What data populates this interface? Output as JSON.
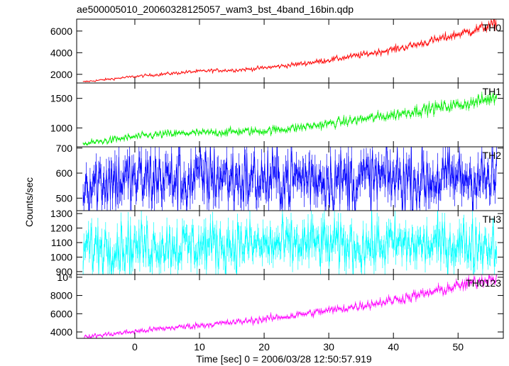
{
  "chart_data": {
    "type": "line",
    "title": "ae500005010_20060328125057_wam3_bst_4band_16bin.qdp",
    "xlabel": "Time [sec] 0 = 2006/03/28 12:50:57.919",
    "ylabel": "Counts/sec",
    "xlim": [
      -9,
      57
    ],
    "x_ticks": [
      0,
      10,
      20,
      30,
      40,
      50
    ],
    "panels": [
      {
        "name": "TH0",
        "color": "#ff0000",
        "ylim": [
          1200,
          7100
        ],
        "y_ticks": [
          2000,
          4000,
          6000
        ],
        "y_tick_labels": [
          "2000",
          "4000",
          "6000"
        ],
        "x": [
          -8,
          -4,
          0,
          4,
          8,
          12,
          16,
          20,
          24,
          28,
          32,
          36,
          40,
          44,
          48,
          52,
          56
        ],
        "values": [
          1300,
          1550,
          1800,
          2000,
          2200,
          2350,
          2400,
          2600,
          2850,
          3150,
          3500,
          3900,
          4300,
          4800,
          5400,
          6000,
          6700
        ]
      },
      {
        "name": "TH1",
        "color": "#00ee00",
        "ylim": [
          680,
          1760
        ],
        "y_ticks": [
          1000,
          1500
        ],
        "y_tick_labels": [
          "1000",
          "1500"
        ],
        "x": [
          -8,
          -4,
          0,
          4,
          8,
          12,
          16,
          20,
          24,
          28,
          32,
          36,
          40,
          44,
          48,
          52,
          56
        ],
        "values": [
          730,
          790,
          850,
          890,
          910,
          920,
          940,
          950,
          990,
          1040,
          1100,
          1160,
          1220,
          1300,
          1360,
          1420,
          1520
        ]
      },
      {
        "name": "TH2",
        "color": "#0000ff",
        "ylim": [
          450,
          705
        ],
        "y_ticks": [
          500,
          600,
          700
        ],
        "y_tick_labels": [
          "500",
          "600",
          "700"
        ],
        "x": [
          -8,
          -4,
          0,
          4,
          8,
          12,
          16,
          20,
          24,
          28,
          32,
          36,
          40,
          44,
          48,
          52,
          56
        ],
        "values": [
          560,
          575,
          570,
          580,
          565,
          590,
          575,
          570,
          580,
          585,
          570,
          575,
          580,
          570,
          575,
          585,
          560
        ]
      },
      {
        "name": "TH3",
        "color": "#00ffff",
        "ylim": [
          880,
          1320
        ],
        "y_ticks": [
          900,
          1000,
          1100,
          1200,
          1300
        ],
        "y_tick_labels": [
          "900",
          "1000",
          "1100",
          "1200",
          "1300"
        ],
        "x": [
          -8,
          -4,
          0,
          4,
          8,
          12,
          16,
          20,
          24,
          28,
          32,
          36,
          40,
          44,
          48,
          52,
          56
        ],
        "values": [
          1060,
          1080,
          1070,
          1090,
          1075,
          1085,
          1090,
          1080,
          1085,
          1095,
          1075,
          1080,
          1090,
          1080,
          1085,
          1090,
          1080
        ]
      },
      {
        "name": "TH0123",
        "color": "#ff00ff",
        "ylim": [
          3300,
          10300
        ],
        "y_ticks": [
          4000,
          6000,
          8000,
          10000
        ],
        "y_tick_labels": [
          "4000",
          "6000",
          "8000",
          "10⁴"
        ],
        "x": [
          -8,
          -4,
          0,
          4,
          8,
          12,
          16,
          20,
          24,
          28,
          32,
          36,
          40,
          44,
          48,
          52,
          56
        ],
        "values": [
          3400,
          3750,
          4050,
          4350,
          4600,
          4850,
          5100,
          5400,
          5750,
          6150,
          6550,
          7000,
          7500,
          8050,
          8700,
          9350,
          10000
        ]
      }
    ]
  }
}
